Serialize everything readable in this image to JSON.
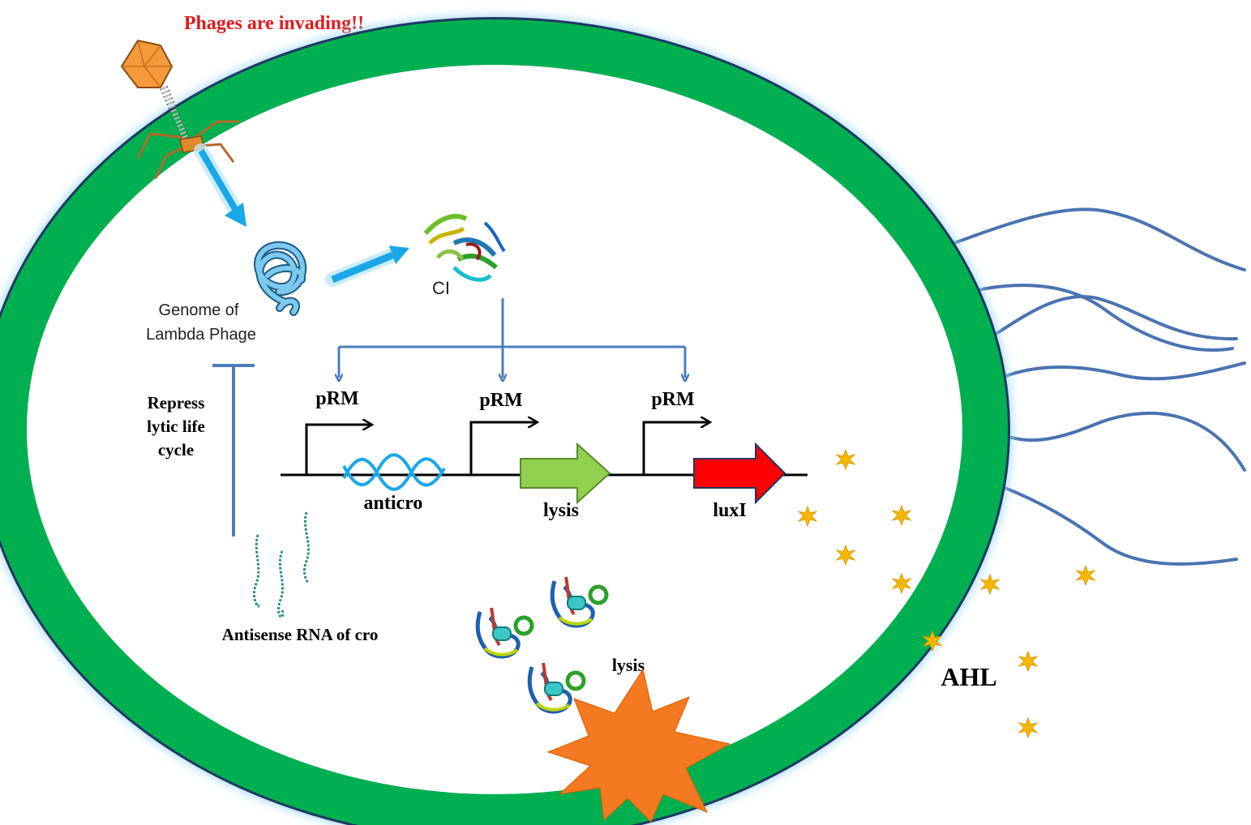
{
  "title": "Phages are invading!!",
  "labels": {
    "genome": [
      "Genome of",
      "Lambda Phage"
    ],
    "ci": "CI",
    "promoter": "pRM",
    "repress": [
      "Repress",
      "lytic life",
      "cycle"
    ],
    "anticro": "anticro",
    "lysis_gene": "lysis",
    "luxi": "luxI",
    "antisense": "Antisense RNA of cro",
    "lysis_protein": "lysis",
    "ahl": "AHL"
  },
  "colors": {
    "title": "#e31a1c",
    "membrane": "#00b050",
    "membrane_outline": "#1f3864",
    "arrow_blue": "#4a7ebb",
    "injection": "#1aa7e8",
    "lysis_gene": "#92d050",
    "luxi_gene": "#ff0000",
    "burst": "#f47920",
    "ahl": "#f5b800",
    "flagella": "#4a73b0"
  }
}
